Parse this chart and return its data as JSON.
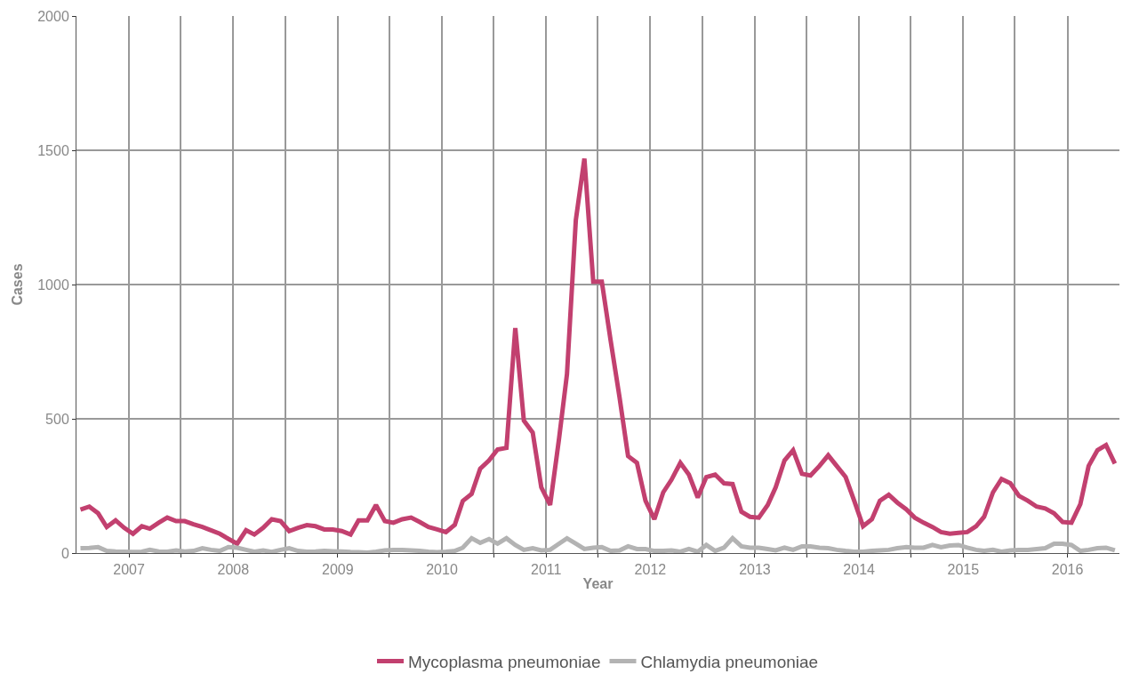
{
  "chart_data": {
    "type": "line",
    "xlabel": "Year",
    "ylabel": "Cases",
    "x": [
      "2006-07-15",
      "2006-08-15",
      "2006-09-15",
      "2006-10-15",
      "2006-11-15",
      "2006-12-15",
      "2007-01-15",
      "2007-02-15",
      "2007-03-15",
      "2007-04-15",
      "2007-05-15",
      "2007-06-15",
      "2007-07-15",
      "2007-08-15",
      "2007-09-15",
      "2007-10-15",
      "2007-11-15",
      "2007-12-15",
      "2008-01-15",
      "2008-02-15",
      "2008-03-15",
      "2008-04-15",
      "2008-05-15",
      "2008-06-15",
      "2008-07-15",
      "2008-08-15",
      "2008-09-15",
      "2008-10-15",
      "2008-11-15",
      "2008-12-15",
      "2009-01-15",
      "2009-02-15",
      "2009-03-15",
      "2009-04-15",
      "2009-05-15",
      "2009-06-15",
      "2009-07-15",
      "2009-08-15",
      "2009-09-15",
      "2009-10-15",
      "2009-11-15",
      "2009-12-15",
      "2010-01-15",
      "2010-02-15",
      "2010-03-15",
      "2010-04-15",
      "2010-05-15",
      "2010-06-15",
      "2010-07-15",
      "2010-08-15",
      "2010-09-15",
      "2010-10-15",
      "2010-11-15",
      "2010-12-15",
      "2011-01-15",
      "2011-02-15",
      "2011-03-15",
      "2011-04-15",
      "2011-05-15",
      "2011-06-15",
      "2011-07-15",
      "2011-08-15",
      "2011-09-15",
      "2011-10-15",
      "2011-11-15",
      "2011-12-15",
      "2012-01-15",
      "2012-02-15",
      "2012-03-15",
      "2012-04-15",
      "2012-05-15",
      "2012-06-15",
      "2012-07-15",
      "2012-08-15",
      "2012-09-15",
      "2012-10-15",
      "2012-11-15",
      "2012-12-15",
      "2013-01-15",
      "2013-02-15",
      "2013-03-15",
      "2013-04-15",
      "2013-05-15",
      "2013-06-15",
      "2013-07-15",
      "2013-08-15",
      "2013-09-15",
      "2013-10-15",
      "2013-11-15",
      "2013-12-15",
      "2014-01-15",
      "2014-02-15",
      "2014-03-15",
      "2014-04-15",
      "2014-05-15",
      "2014-06-15",
      "2014-07-15",
      "2014-08-15",
      "2014-09-15",
      "2014-10-15",
      "2014-11-15",
      "2014-12-15",
      "2015-01-15",
      "2015-02-15",
      "2015-03-15",
      "2015-04-15",
      "2015-05-15",
      "2015-06-15",
      "2015-07-15",
      "2015-08-15",
      "2015-09-15",
      "2015-10-15",
      "2015-11-15",
      "2015-12-15",
      "2016-01-15",
      "2016-02-15",
      "2016-03-15",
      "2016-04-15",
      "2016-05-15",
      "2016-06-15"
    ],
    "series": [
      {
        "name": "Mycoplasma pneumoniae",
        "color": "#c2406f",
        "values": [
          162,
          173,
          148,
          97,
          122,
          94,
          72,
          100,
          91,
          113,
          132,
          119,
          119,
          107,
          97,
          85,
          72,
          53,
          35,
          85,
          69,
          94,
          126,
          119,
          82,
          94,
          104,
          100,
          88,
          88,
          82,
          69,
          122,
          122,
          179,
          119,
          113,
          126,
          132,
          116,
          97,
          88,
          78,
          105,
          194,
          220,
          314,
          345,
          386,
          392,
          838,
          493,
          449,
          245,
          179,
          424,
          666,
          1240,
          1469,
          1011,
          1011,
          791,
          581,
          361,
          336,
          195,
          126,
          226,
          273,
          336,
          292,
          207,
          283,
          292,
          260,
          257,
          154,
          135,
          132,
          179,
          245,
          345,
          383,
          295,
          289,
          324,
          364,
          324,
          283,
          195,
          100,
          126,
          195,
          217,
          188,
          163,
          132,
          113,
          97,
          78,
          72,
          75,
          78,
          100,
          135,
          226,
          276,
          260,
          213,
          195,
          173,
          166,
          148,
          116,
          113,
          182,
          324,
          383,
          402,
          333
        ]
      },
      {
        "name": "Chlamydia pneumoniae",
        "color": "#b3b3b3",
        "values": [
          18,
          19,
          22,
          8,
          6,
          5,
          4,
          5,
          12,
          6,
          5,
          10,
          6,
          8,
          18,
          12,
          8,
          22,
          20,
          12,
          5,
          10,
          4,
          12,
          18,
          8,
          5,
          6,
          8,
          7,
          6,
          4,
          3,
          2,
          5,
          10,
          12,
          12,
          10,
          8,
          5,
          3,
          5,
          8,
          20,
          55,
          38,
          52,
          35,
          55,
          30,
          12,
          18,
          10,
          12,
          35,
          55,
          35,
          15,
          20,
          22,
          8,
          10,
          25,
          15,
          15,
          8,
          8,
          10,
          5,
          15,
          5,
          30,
          8,
          20,
          55,
          25,
          20,
          20,
          15,
          10,
          20,
          12,
          25,
          25,
          20,
          18,
          12,
          8,
          5,
          5,
          8,
          10,
          12,
          18,
          22,
          20,
          20,
          30,
          22,
          28,
          30,
          20,
          12,
          8,
          12,
          5,
          10,
          12,
          12,
          15,
          18,
          35,
          35,
          30,
          8,
          12,
          18,
          20,
          10
        ]
      }
    ],
    "xlim": [
      "2006-07-01",
      "2016-07-01"
    ],
    "xticks": [
      {
        "value": "2007-01-01",
        "label": "2007"
      },
      {
        "value": "2007-07-01",
        "label": null
      },
      {
        "value": "2008-01-01",
        "label": "2008"
      },
      {
        "value": "2008-07-01",
        "label": null
      },
      {
        "value": "2009-01-01",
        "label": "2009"
      },
      {
        "value": "2009-07-01",
        "label": null
      },
      {
        "value": "2010-01-01",
        "label": "2010"
      },
      {
        "value": "2010-07-01",
        "label": null
      },
      {
        "value": "2011-01-01",
        "label": "2011"
      },
      {
        "value": "2011-07-01",
        "label": null
      },
      {
        "value": "2012-01-01",
        "label": "2012"
      },
      {
        "value": "2012-07-01",
        "label": null
      },
      {
        "value": "2013-01-01",
        "label": "2013"
      },
      {
        "value": "2013-07-01",
        "label": null
      },
      {
        "value": "2014-01-01",
        "label": "2014"
      },
      {
        "value": "2014-07-01",
        "label": null
      },
      {
        "value": "2015-01-01",
        "label": "2015"
      },
      {
        "value": "2015-07-01",
        "label": null
      },
      {
        "value": "2016-01-01",
        "label": "2016"
      }
    ],
    "ylim": [
      0,
      2000
    ],
    "yticks": [
      0,
      500,
      1000,
      1500,
      2000
    ],
    "grid": true,
    "legend": "bottom",
    "line_style": "solid",
    "marker": "none"
  }
}
